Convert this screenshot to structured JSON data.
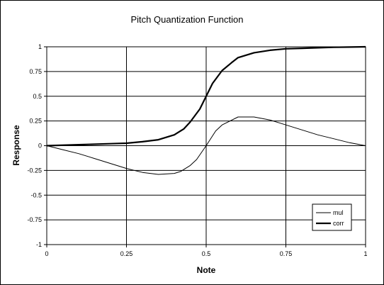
{
  "chart_data": {
    "type": "line",
    "title": "Pitch Quantization Function",
    "xlabel": "Note",
    "ylabel": "Response",
    "xlim": [
      0,
      1
    ],
    "ylim": [
      -1,
      1
    ],
    "x_ticks": [
      "0",
      "0.25",
      "0.5",
      "0.75",
      "1"
    ],
    "y_ticks": [
      "1",
      "0.75",
      "0.5",
      "0.25",
      "0",
      "-0.25",
      "-0.5",
      "-0.75",
      "-1"
    ],
    "grid": true,
    "legend_position": "bottom-right",
    "series": [
      {
        "name": "mul",
        "color": "#000000",
        "x": [
          0,
          0.05,
          0.1,
          0.15,
          0.2,
          0.25,
          0.3,
          0.35,
          0.4,
          0.42,
          0.45,
          0.47,
          0.5,
          0.53,
          0.55,
          0.6,
          0.65,
          0.7,
          0.75,
          0.8,
          0.85,
          0.9,
          0.95,
          1.0
        ],
        "y": [
          0,
          -0.04,
          -0.08,
          -0.13,
          -0.18,
          -0.23,
          -0.27,
          -0.29,
          -0.28,
          -0.26,
          -0.2,
          -0.14,
          0,
          0.15,
          0.21,
          0.29,
          0.29,
          0.26,
          0.21,
          0.16,
          0.11,
          0.07,
          0.03,
          0
        ]
      },
      {
        "name": "corr",
        "color": "#000000",
        "x": [
          0,
          0.1,
          0.2,
          0.25,
          0.3,
          0.35,
          0.4,
          0.43,
          0.45,
          0.48,
          0.5,
          0.52,
          0.55,
          0.58,
          0.6,
          0.65,
          0.7,
          0.75,
          0.8,
          0.85,
          0.9,
          0.95,
          1.0
        ],
        "y": [
          0,
          0.01,
          0.02,
          0.025,
          0.04,
          0.06,
          0.11,
          0.17,
          0.24,
          0.37,
          0.5,
          0.63,
          0.76,
          0.84,
          0.89,
          0.94,
          0.965,
          0.98,
          0.985,
          0.99,
          0.995,
          0.997,
          1.0
        ]
      }
    ]
  }
}
